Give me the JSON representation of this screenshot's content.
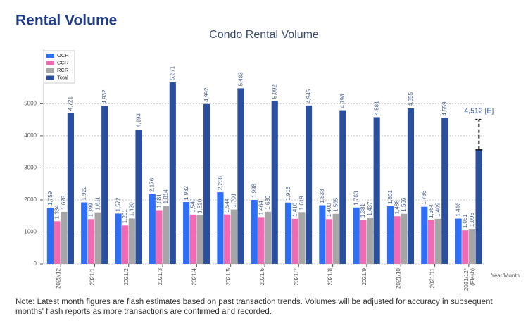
{
  "page_title": "Rental Volume",
  "note": "Note: Latest month figures are flash estimates based on past transaction trends. Volumes will be adjusted for accuracy in subsequent months' flash reports as more transactions are confirmed and recorded.",
  "chart_data": {
    "type": "bar",
    "title": "Condo Rental Volume",
    "xlabel": "Year/Month",
    "categories": [
      "2020/12",
      "2021/1",
      "2021/2",
      "2021/3",
      "2021/4",
      "2021/5",
      "2021/6",
      "2021/7",
      "2021/8",
      "2021/9",
      "2021/10",
      "2021/11",
      "2021/12*"
    ],
    "category_notes": [
      null,
      null,
      null,
      null,
      null,
      null,
      null,
      null,
      null,
      null,
      null,
      null,
      "(Flash)"
    ],
    "series": [
      {
        "name": "OCR",
        "color": "#2f6ff5",
        "values": [
          1759,
          1922,
          1572,
          2176,
          1932,
          2238,
          1998,
          1916,
          1833,
          1763,
          1801,
          1786,
          1416
        ],
        "value_labels": [
          "1,759",
          "1,922",
          "1,572",
          "2,176",
          "1,932",
          "2,238",
          "1,998",
          "1,916",
          "1,833",
          "1,763",
          "1,801",
          "1,786",
          "1,416"
        ]
      },
      {
        "name": "CCR",
        "color": "#f06bb4",
        "values": [
          1334,
          1399,
          1201,
          1681,
          1540,
          1544,
          1464,
          1410,
          1400,
          1381,
          1488,
          1364,
          1051
        ],
        "value_labels": [
          "1,334",
          "1,399",
          "1,201",
          "1,681",
          "1,540",
          "1,544",
          "1,464",
          "1,410",
          "1,400",
          "1,381",
          "1,488",
          "1,364",
          "1,051"
        ]
      },
      {
        "name": "RCR",
        "color": "#a6a6a6",
        "values": [
          1628,
          1611,
          1420,
          1814,
          1520,
          1701,
          1630,
          1619,
          1565,
          1437,
          1566,
          1409,
          1096
        ],
        "value_labels": [
          "1,628",
          "1,611",
          "1,420",
          "1,814",
          "1,520",
          "1,701",
          "1,630",
          "1,619",
          "1,565",
          "1,437",
          "1,566",
          "1,409",
          "1,096"
        ]
      },
      {
        "name": "Total",
        "color": "#2a4f9e",
        "values": [
          4721,
          4932,
          4193,
          5671,
          4992,
          5483,
          5092,
          4945,
          4798,
          4581,
          4855,
          4559,
          3563
        ],
        "value_labels": [
          "4,721",
          "4,932",
          "4,193",
          "5,671",
          "4,992",
          "5,483",
          "5,092",
          "4,945",
          "4,798",
          "4,581",
          "4,855",
          "4,559",
          null
        ]
      }
    ],
    "estimate": {
      "value": 4512,
      "label": "4,512 [E]"
    },
    "ylim": [
      0,
      6700
    ],
    "yticks": [
      0,
      1000,
      2000,
      3000,
      4000,
      5000
    ],
    "grid": true,
    "legend": "upper left"
  }
}
